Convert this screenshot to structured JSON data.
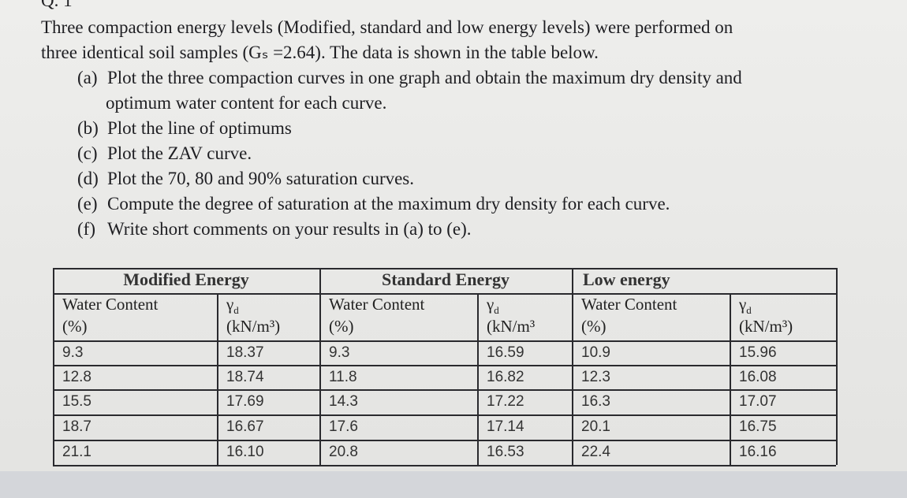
{
  "heading": "Q. 1",
  "intro_lines": [
    "Three compaction energy levels (Modified, standard and low energy levels) were performed on",
    "three identical soil samples (Gₛ =2.64). The data is shown in the table below."
  ],
  "items": [
    {
      "label": "(a)",
      "lines": [
        "Plot the three compaction curves in one graph and obtain the maximum dry density and",
        "optimum water content for each curve."
      ]
    },
    {
      "label": "(b)",
      "lines": [
        "Plot the line of optimums"
      ]
    },
    {
      "label": "(c)",
      "lines": [
        "Plot the ZAV curve."
      ]
    },
    {
      "label": "(d)",
      "lines": [
        "Plot the 70, 80 and 90% saturation curves."
      ]
    },
    {
      "label": "(e)",
      "lines": [
        "Compute the degree of saturation at the maximum dry density for each curve."
      ]
    },
    {
      "label": "(f)",
      "lines": [
        "Write short comments on your results in (a) to (e)."
      ]
    }
  ],
  "table": {
    "groups": [
      "Modified Energy",
      "Standard Energy",
      "Low energy"
    ],
    "columns": [
      {
        "lines": [
          "Water Content",
          "(%)"
        ]
      },
      {
        "symbol": "γ",
        "sub": "d",
        "unit": "(kN/m³)"
      },
      {
        "lines": [
          "Water Content",
          "(%)"
        ]
      },
      {
        "symbol": "γ",
        "sub": "d",
        "unit": "(kN/m³"
      },
      {
        "lines": [
          "Water Content",
          "(%)"
        ]
      },
      {
        "symbol": "γ",
        "sub": "d",
        "unit": "(kN/m³)"
      }
    ],
    "rows": [
      [
        "9.3",
        "18.37",
        "9.3",
        "16.59",
        "10.9",
        "15.96"
      ],
      [
        "12.8",
        "18.74",
        "11.8",
        "16.82",
        "12.3",
        "16.08"
      ],
      [
        "15.5",
        "17.69",
        "14.3",
        "17.22",
        "16.3",
        "17.07"
      ],
      [
        "18.7",
        "16.67",
        "17.6",
        "17.14",
        "20.1",
        "16.75"
      ],
      [
        "21.1",
        "16.10",
        "20.8",
        "16.53",
        "22.4",
        "16.16"
      ]
    ]
  }
}
